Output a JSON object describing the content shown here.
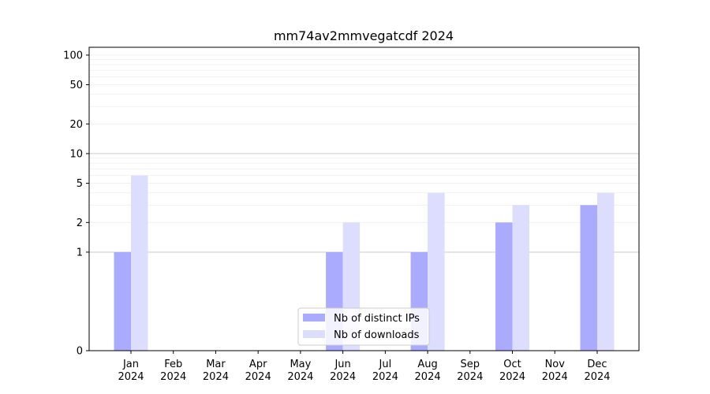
{
  "chart_data": {
    "type": "bar",
    "title": "mm74av2mmvegatcdf 2024",
    "xlabel": "",
    "ylabel": "",
    "y_scale": "symlog",
    "y_ticks": [
      0,
      1,
      2,
      5,
      10,
      20,
      50,
      100
    ],
    "ylim": [
      0,
      120
    ],
    "grid": true,
    "legend_position": "lower-center",
    "categories": [
      {
        "month": "Jan",
        "year": "2024"
      },
      {
        "month": "Feb",
        "year": "2024"
      },
      {
        "month": "Mar",
        "year": "2024"
      },
      {
        "month": "Apr",
        "year": "2024"
      },
      {
        "month": "May",
        "year": "2024"
      },
      {
        "month": "Jun",
        "year": "2024"
      },
      {
        "month": "Jul",
        "year": "2024"
      },
      {
        "month": "Aug",
        "year": "2024"
      },
      {
        "month": "Sep",
        "year": "2024"
      },
      {
        "month": "Oct",
        "year": "2024"
      },
      {
        "month": "Nov",
        "year": "2024"
      },
      {
        "month": "Dec",
        "year": "2024"
      }
    ],
    "series": [
      {
        "name": "Nb of distinct IPs",
        "color": "#aaaaff",
        "values": [
          1,
          0,
          0,
          0,
          0,
          1,
          0,
          1,
          0,
          2,
          0,
          3
        ]
      },
      {
        "name": "Nb of downloads",
        "color": "#ddddff",
        "values": [
          6,
          0,
          0,
          0,
          0,
          2,
          0,
          4,
          0,
          3,
          0,
          4
        ]
      }
    ]
  }
}
